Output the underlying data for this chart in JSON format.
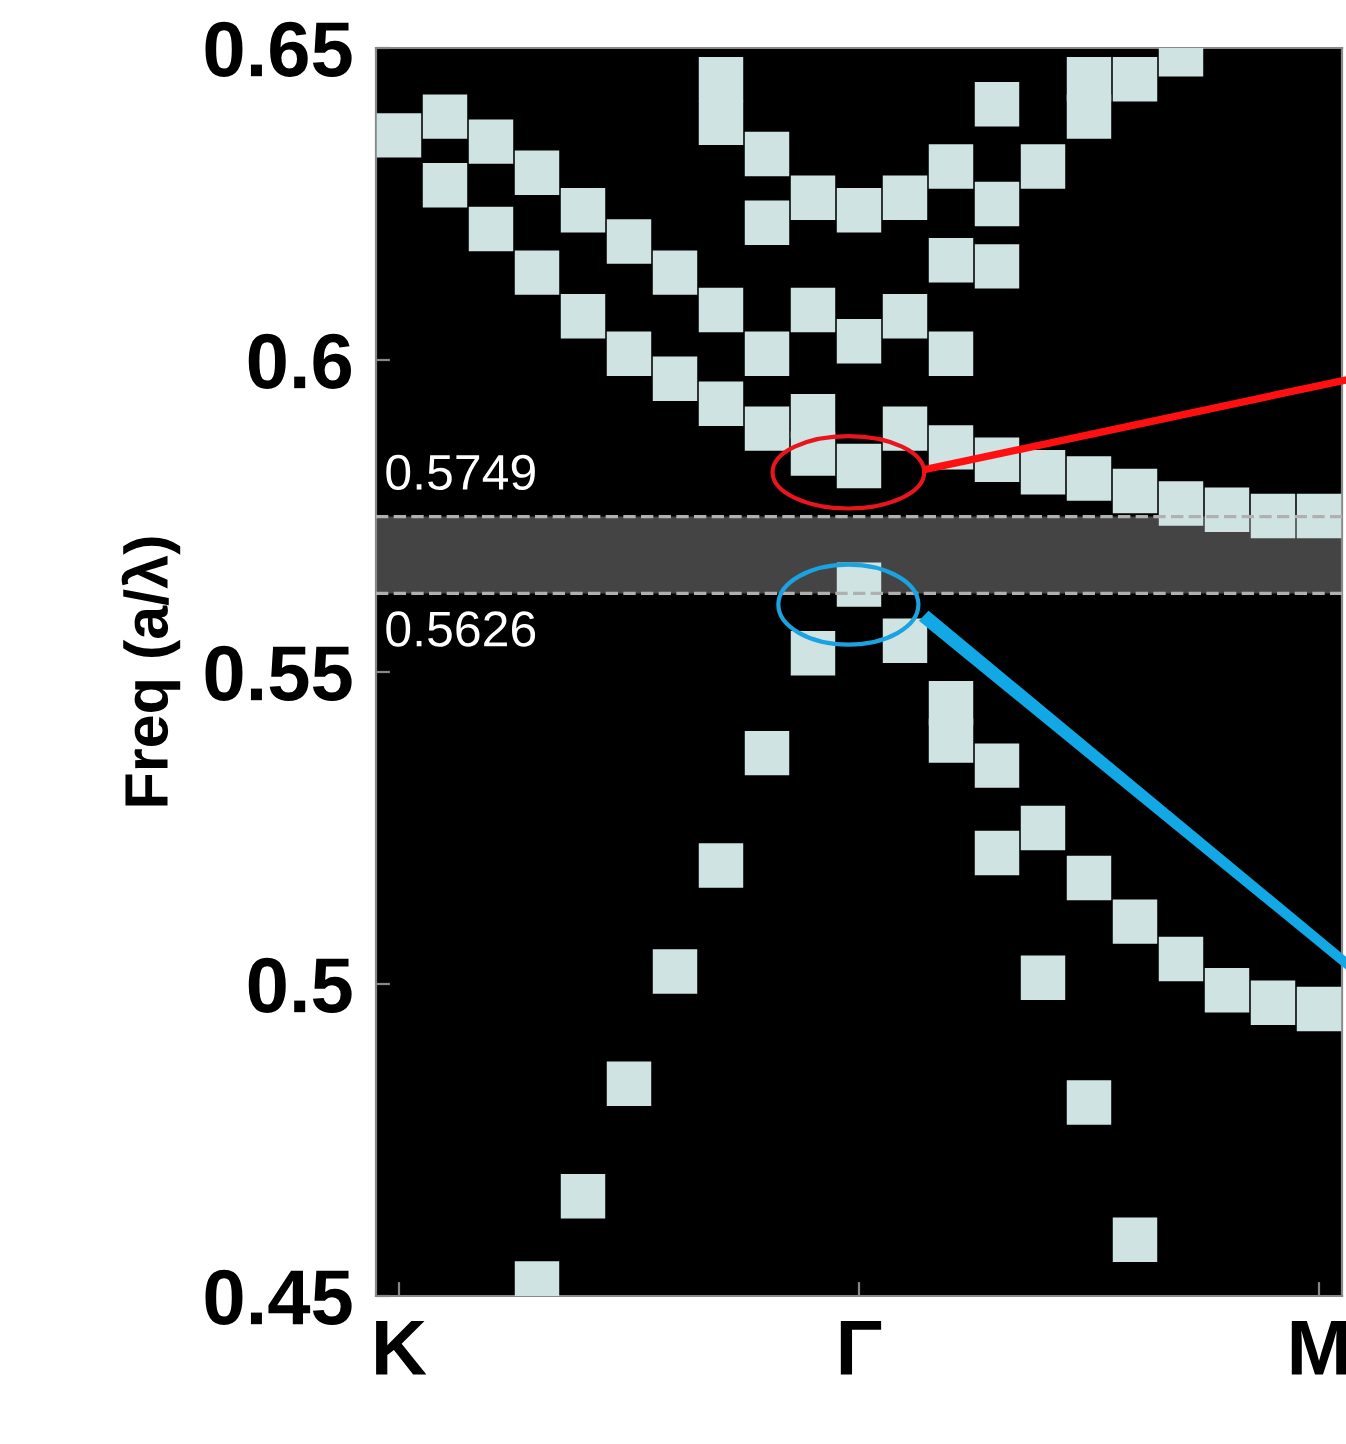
{
  "chart_data": {
    "type": "scatter",
    "ylabel": "Freq (a/λ)",
    "categories": [
      "K",
      null,
      null,
      null,
      null,
      null,
      null,
      null,
      null,
      null,
      "Γ",
      null,
      null,
      null,
      null,
      null,
      null,
      null,
      null,
      null,
      "M"
    ],
    "ylim": [
      0.45,
      0.65
    ],
    "yticks": [
      0.45,
      0.5,
      0.55,
      0.6,
      0.65
    ],
    "marker": "square",
    "grid": false,
    "series": [
      {
        "color": "#cfe3e3",
        "values": [
          0.636,
          0.639,
          0.635,
          0.63,
          0.624,
          0.619,
          0.614,
          0.645,
          0.633,
          0.626,
          0.624,
          0.626,
          0.631,
          0.641,
          0.631,
          0.645,
          0.645,
          0.649,
          0.576,
          0.575,
          0.575
        ]
      },
      {
        "color": "#cfe3e3",
        "values": [
          null,
          0.628,
          0.621,
          0.614,
          0.607,
          0.601,
          0.597,
          0.638,
          0.622,
          0.608,
          0.603,
          0.607,
          0.616,
          0.625,
          0.582,
          0.639,
          0.579,
          0.577,
          0.499,
          0.497,
          0.496
        ]
      },
      {
        "color": "#cfe3e3",
        "values": [
          null,
          null,
          null,
          0.452,
          0.466,
          0.484,
          0.502,
          0.608,
          0.601,
          0.591,
          0.583,
          0.589,
          0.601,
          0.615,
          0.525,
          0.581,
          0.51,
          0.504,
          null,
          null,
          null
        ]
      },
      {
        "color": "#cfe3e3",
        "values": [
          null,
          null,
          null,
          null,
          null,
          null,
          null,
          0.593,
          0.589,
          0.585,
          0.564,
          0.555,
          0.586,
          0.584,
          0.501,
          0.517,
          0.459,
          null,
          null,
          null,
          null
        ]
      },
      {
        "color": "#cfe3e3",
        "values": [
          null,
          null,
          null,
          null,
          null,
          null,
          null,
          0.519,
          0.537,
          0.553,
          null,
          null,
          0.545,
          0.535,
          null,
          0.481,
          null,
          null,
          null,
          null,
          null
        ]
      },
      {
        "color": "#cfe3e3",
        "values": [
          null,
          null,
          null,
          null,
          null,
          null,
          null,
          null,
          null,
          null,
          null,
          null,
          0.539,
          0.521,
          null,
          null,
          null,
          null,
          null,
          null,
          null
        ]
      }
    ],
    "bands": [
      {
        "axis": "y",
        "from": 0.5626,
        "to": 0.5749,
        "color": "#444444"
      }
    ],
    "ref_lines": [
      {
        "axis": "y",
        "value": 0.5749,
        "label": "0.5749",
        "color": "#b0b0b0",
        "line_style": "dashed"
      },
      {
        "axis": "y",
        "value": 0.5626,
        "label": "0.5626",
        "color": "#b0b0b0",
        "line_style": "dashed"
      }
    ]
  }
}
